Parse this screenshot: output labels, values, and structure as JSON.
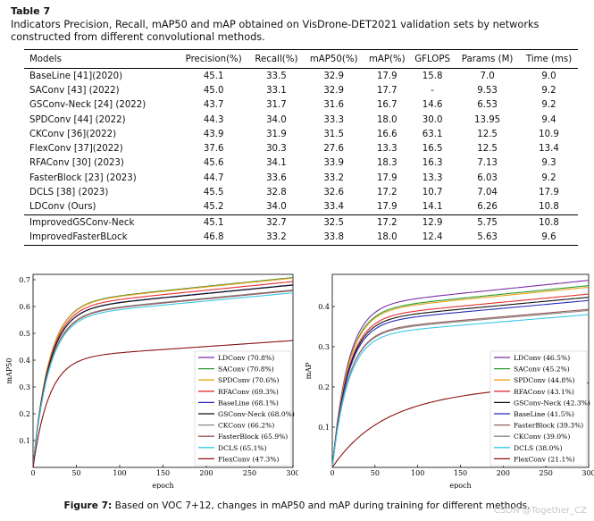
{
  "table": {
    "label": "Table 7",
    "caption": "Indicators Precision, Recall, mAP50 and mAP obtained on VisDrone-DET2021 validation sets by networks constructed from different convolutional methods.",
    "headers": [
      "Models",
      "Precision(%)",
      "Recall(%)",
      "mAP50(%)",
      "mAP(%)",
      "GFLOPS",
      "Params (M)",
      "Time (ms)"
    ],
    "rows": [
      [
        "BaseLine [41](2020)",
        "45.1",
        "33.5",
        "32.9",
        "17.9",
        "15.8",
        "7.0",
        "9.0"
      ],
      [
        "SAConv [43] (2022)",
        "45.0",
        "33.1",
        "32.9",
        "17.7",
        "-",
        "9.53",
        "9.2"
      ],
      [
        "GSConv-Neck [24] (2022)",
        "43.7",
        "31.7",
        "31.6",
        "16.7",
        "14.6",
        "6.53",
        "9.2"
      ],
      [
        "SPDConv [44] (2022)",
        "44.3",
        "34.0",
        "33.3",
        "18.0",
        "30.0",
        "13.95",
        "9.4"
      ],
      [
        "CKConv [36](2022)",
        "43.9",
        "31.9",
        "31.5",
        "16.6",
        "63.1",
        "12.5",
        "10.9"
      ],
      [
        "FlexConv [37](2022)",
        "37.6",
        "30.3",
        "27.6",
        "13.3",
        "16.5",
        "12.5",
        "13.4"
      ],
      [
        "RFAConv [30] (2023)",
        "45.6",
        "34.1",
        "33.9",
        "18.3",
        "16.3",
        "7.13",
        "9.3"
      ],
      [
        "FasterBlock [23] (2023)",
        "44.7",
        "33.6",
        "33.2",
        "17.9",
        "13.3",
        "6.03",
        "9.2"
      ],
      [
        "DCLS [38] (2023)",
        "45.5",
        "32.8",
        "32.6",
        "17.2",
        "10.7",
        "7.04",
        "17.9"
      ],
      [
        "LDConv (Ours)",
        "45.2",
        "34.0",
        "33.4",
        "17.9",
        "14.1",
        "6.26",
        "10.8"
      ],
      [
        "ImprovedGSConv-Neck",
        "45.1",
        "32.7",
        "32.5",
        "17.2",
        "12.9",
        "5.75",
        "10.8"
      ],
      [
        "ImprovedFasterBLock",
        "46.8",
        "33.2",
        "33.8",
        "18.0",
        "12.4",
        "5.63",
        "9.6"
      ]
    ]
  },
  "chart_data": [
    {
      "type": "line",
      "xlabel": "epoch",
      "ylabel": "mAP50",
      "xlim": [
        0,
        300
      ],
      "ylim": [
        0,
        0.72
      ],
      "xticks": [
        0,
        50,
        100,
        150,
        200,
        250,
        300
      ],
      "yticks": [
        0.1,
        0.2,
        0.3,
        0.4,
        0.5,
        0.6,
        0.7
      ],
      "legend_position": "bottom-right",
      "series": [
        {
          "name": "LDConv (70.8%)",
          "color": "#7b2fa8",
          "final": 0.708
        },
        {
          "name": "SAConv (70.8%)",
          "color": "#2e9a2e",
          "final": 0.708
        },
        {
          "name": "SPDConv (70.6%)",
          "color": "#e8a21a",
          "final": 0.706
        },
        {
          "name": "RFAConv (69.3%)",
          "color": "#e03030",
          "final": 0.693
        },
        {
          "name": "BaseLine (68.1%)",
          "color": "#2a2ab8",
          "final": 0.681
        },
        {
          "name": "GSConv-Neck (68.0%)",
          "color": "#111111",
          "final": 0.68
        },
        {
          "name": "CKConv (66.2%)",
          "color": "#888888",
          "final": 0.662
        },
        {
          "name": "FasterBlock (65.9%)",
          "color": "#9a5a5a",
          "final": 0.659
        },
        {
          "name": "DCLS (65.1%)",
          "color": "#36c8e6",
          "final": 0.651
        },
        {
          "name": "FlexConv (47.3%)",
          "color": "#8a1010",
          "final": 0.473
        }
      ]
    },
    {
      "type": "line",
      "xlabel": "epoch",
      "ylabel": "mAP",
      "xlim": [
        0,
        300
      ],
      "ylim": [
        0,
        0.48
      ],
      "xticks": [
        0,
        50,
        100,
        150,
        200,
        250,
        300
      ],
      "yticks": [
        0.1,
        0.2,
        0.3,
        0.4
      ],
      "legend_position": "bottom-right",
      "series": [
        {
          "name": "LDConv (46.5%)",
          "color": "#7b2fa8",
          "final": 0.465
        },
        {
          "name": "SAConv (45.2%)",
          "color": "#2e9a2e",
          "final": 0.452
        },
        {
          "name": "SPDConv (44.8%)",
          "color": "#e8a21a",
          "final": 0.448
        },
        {
          "name": "RFAConv (43.1%)",
          "color": "#e03030",
          "final": 0.431
        },
        {
          "name": "GSConv-Neck (42.3%)",
          "color": "#111111",
          "final": 0.423
        },
        {
          "name": "BaseLine (41.5%)",
          "color": "#2a2ab8",
          "final": 0.415
        },
        {
          "name": "FasterBlock (39.3%)",
          "color": "#9a5a5a",
          "final": 0.393
        },
        {
          "name": "CKConv (39.0%)",
          "color": "#888888",
          "final": 0.39
        },
        {
          "name": "DCLS (38.0%)",
          "color": "#36c8e6",
          "final": 0.38
        },
        {
          "name": "FlexConv (21.1%)",
          "color": "#8a1010",
          "final": 0.211
        }
      ]
    }
  ],
  "figure": {
    "label": "Figure 7:",
    "caption": "Based on VOC 7+12, changes in mAP50 and mAP during training for different methods."
  },
  "watermark": "CSDN @Together_CZ"
}
